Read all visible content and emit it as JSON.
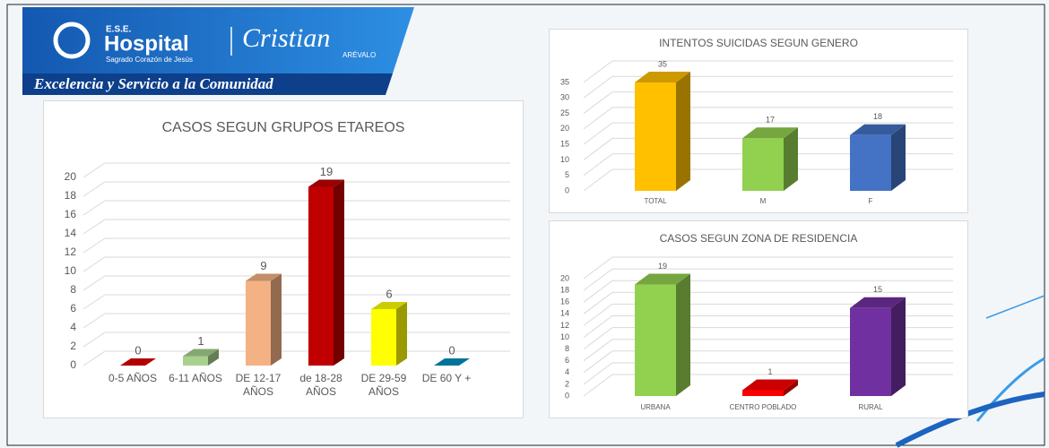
{
  "header": {
    "ese": "E.S.E.",
    "hospital": "Hospital",
    "subname": "Sagrado Corazón de Jesús",
    "signature": "Cristian",
    "signature_sub": "ARÉVALO",
    "tagline": "Excelencia y Servicio a la Comunidad"
  },
  "chart_data": [
    {
      "type": "bar3d",
      "title": "CASOS SEGUN GRUPOS ETAREOS",
      "categories": [
        "0-5 AÑOS",
        "6-11 AÑOS",
        "DE 12-17 AÑOS",
        "de 18-28 AÑOS",
        "DE 29-59 AÑOS",
        "DE 60 Y +"
      ],
      "values": [
        0,
        1,
        9,
        19,
        6,
        0
      ],
      "colors": [
        "#e00000",
        "#a9d18e",
        "#f4b183",
        "#c00000",
        "#ffff00",
        "#0090c0"
      ],
      "ylim": [
        0,
        20
      ],
      "yticks": [
        0,
        2,
        4,
        6,
        8,
        10,
        12,
        14,
        16,
        18,
        20
      ],
      "grid": true
    },
    {
      "type": "bar3d",
      "title": "INTENTOS SUICIDAS SEGUN GENERO",
      "categories": [
        "TOTAL",
        "M",
        "F"
      ],
      "values": [
        35,
        17,
        18
      ],
      "colors": [
        "#ffc000",
        "#92d050",
        "#4472c4"
      ],
      "ylim": [
        0,
        35
      ],
      "yticks": [
        0,
        5,
        10,
        15,
        20,
        25,
        30,
        35
      ],
      "grid": true
    },
    {
      "type": "bar3d",
      "title": "CASOS SEGUN ZONA DE RESIDENCIA",
      "categories": [
        "URBANA",
        "CENTRO POBLADO",
        "RURAL"
      ],
      "values": [
        19,
        1,
        15
      ],
      "colors": [
        "#92d050",
        "#ff0000",
        "#7030a0"
      ],
      "ylim": [
        0,
        20
      ],
      "yticks": [
        0,
        2,
        4,
        6,
        8,
        10,
        12,
        14,
        16,
        18,
        20
      ],
      "grid": true
    }
  ]
}
